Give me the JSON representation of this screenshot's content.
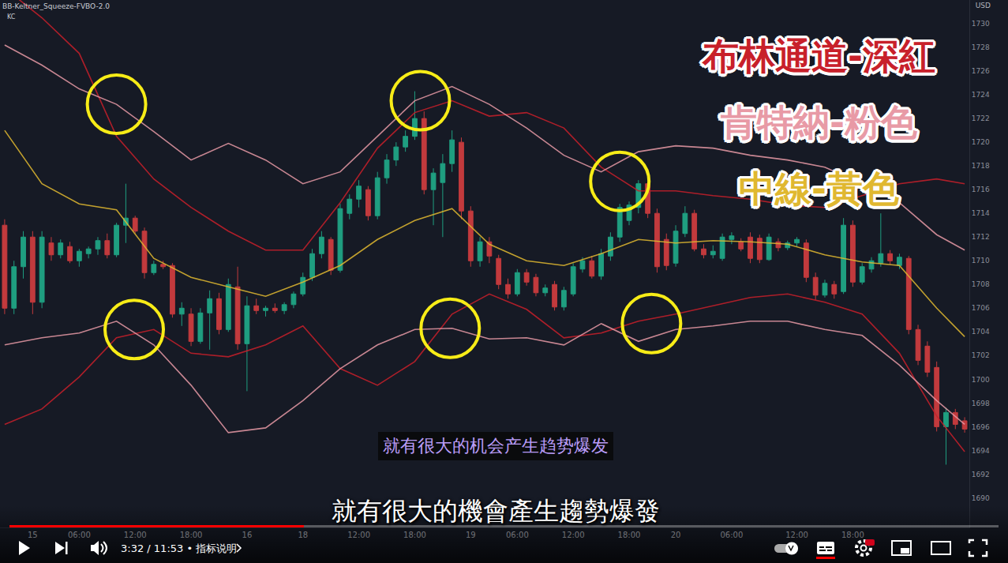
{
  "chart_data": {
    "type": "candlestick",
    "categories": [
      null,
      null,
      null,
      "15",
      null,
      null,
      null,
      null,
      "06:00",
      null,
      null,
      null,
      null,
      null,
      "12:00",
      null,
      null,
      null,
      null,
      null,
      "18:00",
      null,
      null,
      null,
      null,
      null,
      "16",
      null,
      null,
      null,
      null,
      null,
      "18",
      null,
      null,
      null,
      null,
      null,
      "12:00",
      null,
      null,
      null,
      null,
      null,
      "18:00",
      null,
      null,
      null,
      null,
      null,
      "19",
      null,
      null,
      null,
      null,
      "06:00",
      null,
      null,
      null,
      null,
      null,
      "12:00",
      null,
      null,
      null,
      null,
      null,
      "18:00",
      null,
      null,
      null,
      null,
      "20",
      null,
      null,
      null,
      null,
      null,
      "06:00",
      null,
      null,
      null,
      null,
      null,
      null,
      "12:00",
      null,
      null,
      null,
      null,
      null,
      "18:00",
      null,
      null,
      null,
      null,
      null,
      null,
      null,
      null,
      null,
      null,
      null,
      null
    ],
    "open": [
      1713.0,
      1706.0,
      1709.5,
      1712.0,
      1706.5,
      1711.5,
      1710.5,
      1711.2,
      1710.0,
      1710.6,
      1711.0,
      1711.7,
      1710.5,
      1713.0,
      1713.6,
      1712.5,
      1709.0,
      1709.7,
      1709.6,
      1705.5,
      1705.5,
      1703.2,
      1705.6,
      1706.8,
      1704.2,
      1707.8,
      1703.0,
      1706.2,
      1705.8,
      1706.0,
      1705.8,
      1706.3,
      1707.2,
      1708.6,
      1710.6,
      1711.8,
      1709.2,
      1714.0,
      1715.2,
      1716.0,
      1713.8,
      1717.0,
      1718.5,
      1719.6,
      1720.5,
      1722.0,
      1716.0,
      1716.6,
      1718.2,
      1720.0,
      1714.2,
      1710.0,
      1711.6,
      1710.2,
      1708.0,
      1707.2,
      1709.0,
      1708.6,
      1707.3,
      1708.0,
      1706.1,
      1707.2,
      1709.3,
      1710.0,
      1708.7,
      1710.4,
      1712.0,
      1713.4,
      1714.5,
      1716.5,
      1714.0,
      1711.8,
      1709.8,
      1712.3,
      1714.0,
      1711.0,
      1710.5,
      1710.2,
      1711.8,
      1711.6,
      1712.0,
      1711.9,
      1710.1,
      1711.6,
      1711.1,
      1711.5,
      1711.5,
      1708.6,
      1707.1,
      1708.0,
      1707.4,
      1713.0,
      1708.2,
      1709.3,
      1709.8,
      1710.6,
      1709.6,
      1710.2,
      1704.2,
      1702.8,
      1701.0,
      1696.0,
      1697.2,
      1696.5
    ],
    "high": [
      1713.5,
      1710.0,
      1712.5,
      1712.5,
      1712.5,
      1712.0,
      1711.8,
      1711.6,
      1711.0,
      1711.2,
      1712.0,
      1712.3,
      1713.2,
      1716.5,
      1713.8,
      1712.8,
      1710.0,
      1710.0,
      1709.8,
      1706.5,
      1706.0,
      1706.0,
      1707.5,
      1707.3,
      1708.5,
      1709.5,
      1707.0,
      1706.8,
      1706.2,
      1706.4,
      1706.5,
      1707.4,
      1709.0,
      1711.0,
      1712.5,
      1712.0,
      1714.8,
      1715.6,
      1716.8,
      1716.3,
      1717.5,
      1719.0,
      1720.0,
      1721.0,
      1724.3,
      1722.6,
      1717.8,
      1719.0,
      1721.0,
      1720.4,
      1714.6,
      1712.0,
      1712.0,
      1710.5,
      1708.5,
      1709.3,
      1709.3,
      1708.9,
      1708.0,
      1708.3,
      1707.8,
      1709.8,
      1710.3,
      1710.4,
      1711.0,
      1712.4,
      1714.8,
      1715.0,
      1716.8,
      1716.8,
      1714.4,
      1712.3,
      1713.0,
      1714.6,
      1714.3,
      1711.4,
      1711.3,
      1712.3,
      1712.4,
      1711.9,
      1712.4,
      1712.2,
      1712.3,
      1711.9,
      1711.7,
      1712.0,
      1711.8,
      1709.0,
      1708.4,
      1708.3,
      1713.6,
      1713.4,
      1709.8,
      1710.3,
      1714.0,
      1710.9,
      1710.6,
      1710.4,
      1704.6,
      1703.2,
      1701.5,
      1697.6,
      1697.5,
      1696.8
    ],
    "low": [
      1705.5,
      1705.5,
      1708.5,
      1705.5,
      1706.0,
      1710.0,
      1710.2,
      1709.8,
      1709.5,
      1710.2,
      1710.5,
      1710.2,
      1710.3,
      1711.5,
      1712.3,
      1708.5,
      1708.8,
      1709.3,
      1705.2,
      1704.5,
      1702.8,
      1703.0,
      1702.5,
      1703.8,
      1704.0,
      1702.5,
      1699.0,
      1705.5,
      1705.3,
      1705.6,
      1705.5,
      1706.0,
      1707.0,
      1708.3,
      1710.2,
      1708.8,
      1709.0,
      1713.5,
      1714.5,
      1713.4,
      1713.5,
      1716.5,
      1718.0,
      1719.2,
      1720.2,
      1715.6,
      1713.0,
      1712.0,
      1717.5,
      1713.5,
      1709.5,
      1709.5,
      1709.8,
      1707.6,
      1706.8,
      1707.0,
      1707.9,
      1707.0,
      1707.0,
      1705.8,
      1705.8,
      1707.0,
      1709.0,
      1708.5,
      1708.4,
      1710.0,
      1711.6,
      1713.0,
      1714.0,
      1713.6,
      1709.0,
      1709.2,
      1709.5,
      1712.0,
      1710.8,
      1710.2,
      1710.2,
      1710.0,
      1711.4,
      1710.8,
      1709.8,
      1709.8,
      1710.0,
      1710.8,
      1710.9,
      1711.2,
      1708.2,
      1706.7,
      1706.9,
      1706.8,
      1707.2,
      1707.8,
      1708.0,
      1709.0,
      1709.5,
      1709.7,
      1709.3,
      1703.8,
      1701.2,
      1700.2,
      1695.6,
      1692.8,
      1695.8,
      1695.5
    ],
    "close": [
      1706.0,
      1709.5,
      1712.0,
      1706.5,
      1712.0,
      1710.5,
      1711.5,
      1710.0,
      1710.8,
      1711.0,
      1711.7,
      1710.5,
      1713.0,
      1713.6,
      1712.5,
      1709.0,
      1709.7,
      1709.5,
      1705.5,
      1706.0,
      1703.2,
      1705.6,
      1706.8,
      1704.2,
      1708.0,
      1703.0,
      1706.2,
      1705.8,
      1706.0,
      1705.8,
      1706.3,
      1707.2,
      1708.6,
      1710.6,
      1712.0,
      1709.2,
      1714.4,
      1715.2,
      1716.3,
      1713.8,
      1717.0,
      1718.5,
      1719.6,
      1720.5,
      1722.0,
      1716.0,
      1717.4,
      1718.2,
      1720.2,
      1714.2,
      1710.0,
      1711.6,
      1710.4,
      1708.0,
      1707.2,
      1709.0,
      1708.2,
      1707.3,
      1707.7,
      1706.1,
      1707.5,
      1709.5,
      1710.0,
      1708.7,
      1710.6,
      1712.0,
      1714.5,
      1714.7,
      1716.5,
      1714.0,
      1709.5,
      1709.6,
      1712.5,
      1714.0,
      1711.0,
      1710.5,
      1710.8,
      1712.0,
      1712.1,
      1711.0,
      1710.2,
      1710.1,
      1712.0,
      1711.1,
      1711.5,
      1711.8,
      1708.6,
      1707.1,
      1708.1,
      1707.2,
      1713.0,
      1708.2,
      1709.5,
      1710.0,
      1710.6,
      1710.0,
      1710.3,
      1704.2,
      1701.6,
      1700.6,
      1696.0,
      1697.2,
      1696.2,
      1695.8
    ],
    "series": [
      {
        "name": "布林通道-深紅",
        "color": "#c8202a",
        "type": "band",
        "x": [
          0,
          4,
          8,
          12,
          16,
          20,
          24,
          28,
          32,
          36,
          40,
          44,
          48,
          52,
          56,
          60,
          64,
          68,
          72,
          76,
          80,
          84,
          88,
          92,
          96,
          100,
          103
        ],
        "upper": [
          1733.0,
          1730.5,
          1727.5,
          1720.5,
          1716.9,
          1714.5,
          1712.5,
          1710.9,
          1710.9,
          1714.9,
          1719.5,
          1722.5,
          1723.5,
          1722.2,
          1722.5,
          1721.2,
          1717.9,
          1715.9,
          1715.9,
          1715.5,
          1715.2,
          1714.7,
          1714.5,
          1715.5,
          1716.5,
          1716.9,
          1716.5
        ],
        "lower": [
          1696.2,
          1697.5,
          1700.2,
          1703.5,
          1704.2,
          1702.2,
          1701.9,
          1702.9,
          1704.5,
          1700.9,
          1699.5,
          1701.5,
          1705.5,
          1707.2,
          1705.9,
          1703.5,
          1703.9,
          1704.9,
          1705.5,
          1706.2,
          1706.9,
          1707.2,
          1706.5,
          1705.5,
          1702.2,
          1696.9,
          1693.9
        ]
      },
      {
        "name": "肯特納-粉色",
        "color": "#e89aa6",
        "type": "band",
        "x": [
          0,
          4,
          8,
          12,
          16,
          20,
          24,
          28,
          32,
          36,
          40,
          44,
          48,
          52,
          56,
          60,
          64,
          68,
          72,
          76,
          80,
          84,
          88,
          92,
          96,
          100,
          103
        ],
        "upper": [
          1728.2,
          1726.5,
          1724.5,
          1723.2,
          1720.9,
          1718.5,
          1719.9,
          1718.5,
          1716.5,
          1717.5,
          1720.5,
          1723.5,
          1724.7,
          1723.2,
          1721.2,
          1718.9,
          1717.5,
          1719.2,
          1719.7,
          1719.5,
          1718.9,
          1718.5,
          1717.9,
          1716.5,
          1714.9,
          1712.2,
          1710.9
        ],
        "lower": [
          1702.9,
          1703.5,
          1703.9,
          1704.9,
          1702.9,
          1699.5,
          1695.5,
          1695.9,
          1698.2,
          1700.9,
          1702.9,
          1704.2,
          1704.3,
          1703.4,
          1703.5,
          1702.9,
          1704.7,
          1703.2,
          1704.2,
          1704.5,
          1704.9,
          1704.9,
          1704.2,
          1703.7,
          1701.2,
          1698.2,
          1696.2
        ]
      },
      {
        "name": "中線-黃色",
        "color": "#e0b830",
        "type": "line",
        "x": [
          0,
          4,
          8,
          12,
          16,
          20,
          24,
          28,
          32,
          36,
          40,
          44,
          48,
          52,
          56,
          60,
          64,
          68,
          72,
          76,
          80,
          84,
          88,
          92,
          96,
          100,
          103
        ],
        "values": [
          1721.0,
          1716.5,
          1714.8,
          1714.3,
          1710.2,
          1708.6,
          1707.8,
          1707.0,
          1708.2,
          1709.6,
          1711.8,
          1713.4,
          1714.4,
          1711.4,
          1710.0,
          1709.6,
          1710.6,
          1711.8,
          1711.5,
          1711.7,
          1711.6,
          1711.4,
          1710.5,
          1709.9,
          1709.6,
          1706.0,
          1703.6
        ]
      }
    ],
    "highlights": [
      {
        "x": 12.0,
        "y": 1723.2
      },
      {
        "x": 13.9,
        "y": 1704.2
      },
      {
        "x": 44.6,
        "y": 1723.5
      },
      {
        "x": 47.8,
        "y": 1704.3
      },
      {
        "x": 66.0,
        "y": 1716.7
      },
      {
        "x": 69.4,
        "y": 1704.7
      }
    ],
    "xlim": [
      -0.5,
      103.5
    ],
    "ylim": [
      1687.5,
      1732
    ],
    "yticks": [
      1690,
      1692,
      1694,
      1696,
      1698,
      1700,
      1702,
      1704,
      1706,
      1708,
      1710,
      1712,
      1714,
      1716,
      1718,
      1720,
      1722,
      1724,
      1726,
      1728,
      1730
    ],
    "grid": false,
    "legend": "top-right"
  },
  "header": {
    "indicator": "BB-Keltner_Squeeze-FVBO-2.0",
    "label": "KC",
    "currency": "USD"
  },
  "subtitles": {
    "simplified": "就有很大的机会产生趋势爆发",
    "traditional": "就有很大的機會產生趨勢爆發"
  },
  "player": {
    "time": "3:32 / 11:53",
    "separator": "•",
    "chapter": "指标说明"
  }
}
